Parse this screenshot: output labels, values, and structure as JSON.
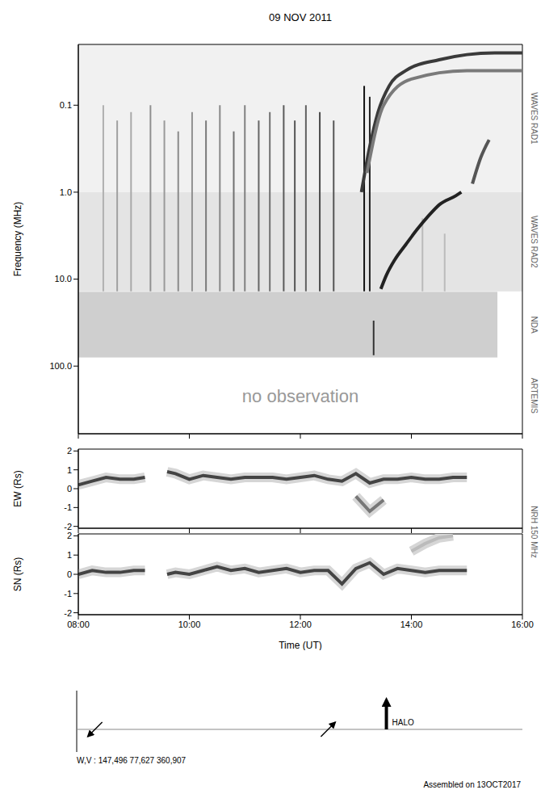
{
  "chart_data": [
    {
      "type": "spectrogram",
      "title": "09 NOV 2011",
      "y_label": "Frequency (MHz)",
      "log": "y",
      "tick_labels": "y",
      "xlim": [
        8,
        16
      ],
      "xticks": [
        {
          "value": 8,
          "label": "08:00"
        },
        {
          "value": 10,
          "label": "10:00"
        },
        {
          "value": 12,
          "label": "12:00"
        },
        {
          "value": 14,
          "label": "14:00"
        },
        {
          "value": 16,
          "label": "16:00"
        }
      ],
      "ylim": [
        600,
        0.02
      ],
      "yticks": [
        0.1,
        {
          "value": 1,
          "label": "1.0"
        },
        {
          "value": 10,
          "label": "10.0"
        },
        {
          "value": 100,
          "label": "100.0"
        }
      ],
      "bands": [
        {
          "label": "WAVES RAD1",
          "range": [
            0.02,
            1.0
          ],
          "time": [
            8,
            16
          ],
          "color": "#f1f1f1"
        },
        {
          "label": "WAVES RAD2",
          "range": [
            1.0,
            13.8
          ],
          "time": [
            8,
            16
          ],
          "color": "#e4e4e4"
        },
        {
          "label": "NDA",
          "range": [
            14,
            80
          ],
          "time": [
            8,
            15.55
          ],
          "color": "#cfcfcf"
        },
        {
          "label": "ARTEMIS",
          "range": [
            80,
            600
          ],
          "time": [
            8,
            16
          ],
          "color": "#ffffff",
          "annotation": "no observation"
        }
      ],
      "bursts": [
        {
          "time": 8.45,
          "range": [
            0.1,
            13.8
          ],
          "color": "#b0b0b0"
        },
        {
          "time": 8.7,
          "range": [
            0.15,
            13.8
          ],
          "color": "#a0a0a0"
        },
        {
          "time": 8.95,
          "range": [
            0.12,
            13.8
          ],
          "color": "#a8a8a8"
        },
        {
          "time": 9.3,
          "range": [
            0.1,
            13.8
          ],
          "color": "#909090"
        },
        {
          "time": 9.55,
          "range": [
            0.15,
            13.8
          ],
          "color": "#999999"
        },
        {
          "time": 9.8,
          "range": [
            0.2,
            13.8
          ],
          "color": "#8a8a8a"
        },
        {
          "time": 10.05,
          "range": [
            0.12,
            13.8
          ],
          "color": "#909090"
        },
        {
          "time": 10.3,
          "range": [
            0.15,
            13.8
          ],
          "color": "#7a7a7a"
        },
        {
          "time": 10.55,
          "range": [
            0.1,
            13.8
          ],
          "color": "#888888"
        },
        {
          "time": 10.8,
          "range": [
            0.2,
            13.8
          ],
          "color": "#707070"
        },
        {
          "time": 11.0,
          "range": [
            0.1,
            13.8
          ],
          "color": "#808080"
        },
        {
          "time": 11.25,
          "range": [
            0.15,
            13.8
          ],
          "color": "#666666"
        },
        {
          "time": 11.45,
          "range": [
            0.12,
            13.8
          ],
          "color": "#707070"
        },
        {
          "time": 11.7,
          "range": [
            0.1,
            13.8
          ],
          "color": "#5a5a5a"
        },
        {
          "time": 11.9,
          "range": [
            0.15,
            13.8
          ],
          "color": "#555555"
        },
        {
          "time": 12.1,
          "range": [
            0.1,
            13.8
          ],
          "color": "#606060"
        },
        {
          "time": 12.35,
          "range": [
            0.12,
            13.8
          ],
          "color": "#4a4a4a"
        },
        {
          "time": 12.6,
          "range": [
            0.15,
            13.8
          ],
          "color": "#555555"
        },
        {
          "time": 13.15,
          "range": [
            0.06,
            13.8
          ],
          "color": "#111111"
        },
        {
          "time": 13.25,
          "range": [
            0.08,
            13.8
          ],
          "color": "#222222"
        },
        {
          "time": 13.32,
          "range": [
            30,
            75
          ],
          "color": "#333333"
        },
        {
          "time": 14.2,
          "range": [
            2,
            13.8
          ],
          "color": "#bbbbbb"
        },
        {
          "time": 14.6,
          "range": [
            3,
            13.8
          ],
          "color": "#bbbbbb"
        }
      ],
      "series": [
        {
          "color": "#3a3a3a",
          "x": [
            13.1,
            13.25,
            13.4,
            13.6,
            13.9,
            14.5,
            15.5,
            16
          ],
          "values": [
            1.0,
            0.3,
            0.12,
            0.06,
            0.04,
            0.03,
            0.025,
            0.025
          ]
        },
        {
          "color": "#7a7a7a",
          "x": [
            13.2,
            13.5,
            14,
            15,
            16
          ],
          "values": [
            0.6,
            0.1,
            0.05,
            0.04,
            0.04
          ]
        },
        {
          "color": "#222222",
          "x": [
            13.45,
            13.55,
            13.7,
            13.9,
            14.1,
            14.3,
            14.5,
            14.8,
            14.9
          ],
          "values": [
            13,
            9,
            6,
            4,
            2.7,
            1.9,
            1.4,
            1.1,
            1.0
          ]
        },
        {
          "color": "#555555",
          "x": [
            15.1,
            15.25,
            15.4
          ],
          "values": [
            0.8,
            0.4,
            0.25
          ]
        }
      ]
    },
    {
      "type": "line",
      "y_label": "EW (Rs)",
      "side_label": "NRH 150 MHz",
      "tick_labels": "y",
      "xlim": [
        8,
        16
      ],
      "xticks": [
        {
          "value": 8,
          "label": "08:00"
        },
        {
          "value": 10,
          "label": "10:00"
        },
        {
          "value": 12,
          "label": "12:00"
        },
        {
          "value": 14,
          "label": "14:00"
        },
        {
          "value": 16,
          "label": "16:00"
        }
      ],
      "ylim": [
        -2.1,
        2.1
      ],
      "yticks": [
        -2,
        -1,
        0,
        1,
        2
      ],
      "x": [
        8.0,
        8.25,
        8.5,
        8.75,
        9.0,
        9.2,
        9.4,
        9.6,
        9.75,
        10.0,
        10.25,
        10.5,
        10.75,
        11.0,
        11.25,
        11.5,
        11.75,
        12.0,
        12.25,
        12.5,
        12.75,
        13.0,
        13.25,
        13.5,
        13.75,
        14.0,
        14.25,
        14.5,
        14.75,
        15.0
      ],
      "series": [
        {
          "color": "#444444",
          "values": [
            0.2,
            0.4,
            0.6,
            0.5,
            0.5,
            0.6,
            null,
            0.9,
            0.8,
            0.5,
            0.7,
            0.6,
            0.5,
            0.6,
            0.6,
            0.6,
            0.5,
            0.6,
            0.7,
            0.5,
            0.4,
            0.8,
            0.3,
            0.5,
            0.5,
            0.6,
            0.5,
            0.5,
            0.6,
            0.6
          ]
        },
        {
          "color": "#777777",
          "values": [
            null,
            null,
            null,
            null,
            null,
            null,
            null,
            null,
            null,
            null,
            null,
            null,
            null,
            null,
            null,
            null,
            null,
            null,
            null,
            null,
            null,
            -0.4,
            -1.2,
            -0.6,
            null,
            null,
            null,
            null,
            null,
            null
          ]
        }
      ]
    },
    {
      "type": "line",
      "y_label": "SN (Rs)",
      "x_label": "Time (UT)",
      "xlim": [
        8,
        16
      ],
      "xticks": [
        {
          "value": 8,
          "label": "08:00"
        },
        {
          "value": 10,
          "label": "10:00"
        },
        {
          "value": 12,
          "label": "12:00"
        },
        {
          "value": 14,
          "label": "14:00"
        },
        {
          "value": 16,
          "label": "16:00"
        }
      ],
      "ylim": [
        -2.1,
        2.1
      ],
      "yticks": [
        -2,
        -1,
        0,
        1,
        2
      ],
      "x": [
        8.0,
        8.25,
        8.5,
        8.75,
        9.0,
        9.2,
        9.4,
        9.6,
        9.75,
        10.0,
        10.25,
        10.5,
        10.75,
        11.0,
        11.25,
        11.5,
        11.75,
        12.0,
        12.25,
        12.5,
        12.75,
        13.0,
        13.25,
        13.5,
        13.75,
        14.0,
        14.25,
        14.5,
        14.75,
        15.0
      ],
      "series": [
        {
          "color": "#444444",
          "values": [
            0.0,
            0.2,
            0.1,
            0.1,
            0.2,
            0.2,
            null,
            0.0,
            0.1,
            0.0,
            0.2,
            0.4,
            0.2,
            0.3,
            0.1,
            0.2,
            0.3,
            0.1,
            0.2,
            0.2,
            -0.5,
            0.3,
            0.6,
            0.0,
            0.3,
            0.2,
            0.1,
            0.2,
            0.2,
            0.2
          ]
        },
        {
          "color": "#bbbbbb",
          "values": [
            null,
            null,
            null,
            null,
            null,
            null,
            null,
            null,
            null,
            null,
            null,
            null,
            null,
            null,
            null,
            null,
            null,
            null,
            null,
            null,
            null,
            null,
            null,
            null,
            null,
            1.2,
            1.6,
            1.9,
            2.0,
            null
          ]
        }
      ]
    }
  ],
  "events": [
    {
      "time": 8.3,
      "direction": "down-left"
    },
    {
      "time": 12.5,
      "direction": "up-right"
    },
    {
      "time": 13.55,
      "direction": "up",
      "label": "HALO"
    }
  ],
  "footer": {
    "left": "W,V : 147,496 77,627 360,907",
    "right": "Assembled on 13OCT2017"
  }
}
